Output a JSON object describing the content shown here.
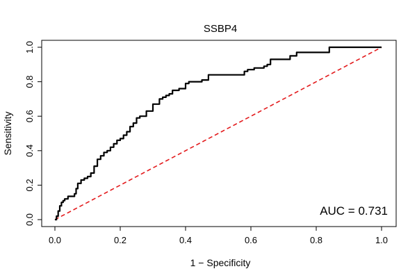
{
  "chart_data": {
    "type": "line",
    "title": "SSBP4",
    "xlabel": "1 − Specificity",
    "ylabel": "Sensitivity",
    "xlim": [
      0,
      1
    ],
    "ylim": [
      0,
      1
    ],
    "x_ticks": [
      "0.0",
      "0.2",
      "0.4",
      "0.6",
      "0.8",
      "1.0"
    ],
    "y_ticks": [
      "0.0",
      "0.2",
      "0.4",
      "0.6",
      "0.8",
      "1.0"
    ],
    "grid": false,
    "annotation": "AUC = 0.731",
    "colors": {
      "roc": "#000000",
      "reference": "#e31a1c"
    },
    "series": [
      {
        "x": [
          0.0,
          0.005,
          0.01,
          0.015,
          0.02,
          0.025,
          0.03,
          0.04,
          0.05,
          0.06,
          0.065,
          0.07,
          0.08,
          0.09,
          0.1,
          0.11,
          0.12,
          0.13,
          0.14,
          0.15,
          0.16,
          0.17,
          0.18,
          0.19,
          0.2,
          0.21,
          0.22,
          0.23,
          0.24,
          0.25,
          0.26,
          0.28,
          0.3,
          0.32,
          0.33,
          0.34,
          0.35,
          0.36,
          0.38,
          0.4,
          0.41,
          0.43,
          0.45,
          0.47,
          0.48,
          0.52,
          0.55,
          0.58,
          0.59,
          0.61,
          0.63,
          0.64,
          0.65,
          0.66,
          0.68,
          0.7,
          0.72,
          0.74,
          0.8,
          0.84,
          0.9,
          1.0
        ],
        "y": [
          0.0,
          0.02,
          0.05,
          0.08,
          0.1,
          0.11,
          0.12,
          0.135,
          0.135,
          0.15,
          0.18,
          0.21,
          0.23,
          0.24,
          0.25,
          0.27,
          0.31,
          0.35,
          0.37,
          0.39,
          0.4,
          0.42,
          0.44,
          0.46,
          0.47,
          0.49,
          0.51,
          0.54,
          0.56,
          0.59,
          0.6,
          0.63,
          0.67,
          0.7,
          0.71,
          0.72,
          0.73,
          0.75,
          0.76,
          0.79,
          0.8,
          0.8,
          0.81,
          0.84,
          0.84,
          0.84,
          0.84,
          0.86,
          0.87,
          0.88,
          0.88,
          0.89,
          0.9,
          0.93,
          0.93,
          0.93,
          0.95,
          0.97,
          0.97,
          1.0,
          1.0,
          1.0
        ]
      },
      {
        "x": [
          0,
          1
        ],
        "y": [
          0,
          1
        ]
      }
    ]
  }
}
